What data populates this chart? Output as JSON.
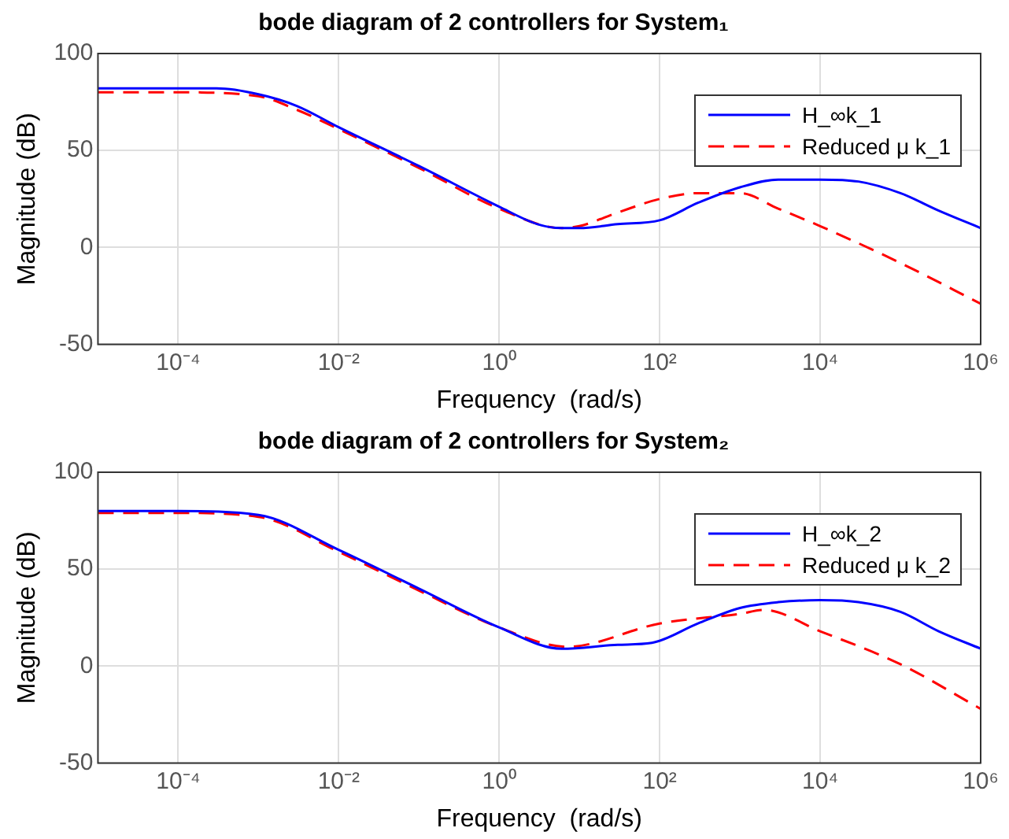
{
  "chart_data": [
    {
      "type": "line",
      "title": "bode diagram of 2 controllers for System₁",
      "xlabel": "Frequency  (rad/s)",
      "ylabel": "Magnitude (dB)",
      "log": "x",
      "grid": true,
      "legend": "top right",
      "marker": "none",
      "xlim": [
        1e-05,
        1000000
      ],
      "xticks": [
        {
          "value": 0.0001,
          "label": "10⁻⁴"
        },
        {
          "value": 0.01,
          "label": "10⁻²"
        },
        {
          "value": 1,
          "label": "10⁰"
        },
        {
          "value": 100,
          "label": "10²"
        },
        {
          "value": 10000,
          "label": "10⁴"
        },
        {
          "value": 1000000,
          "label": "10⁶"
        }
      ],
      "ylim": [
        -50,
        100
      ],
      "yticks": [
        -50,
        0,
        50,
        100
      ],
      "series": [
        {
          "name": "H_∞k_1",
          "color": "#0000ff",
          "line_style": "solid",
          "x": [
            1e-05,
            0.0001,
            0.0003,
            0.001,
            0.003,
            0.01,
            0.1,
            1,
            3,
            6,
            10,
            30,
            100,
            300,
            1000,
            3000,
            10000,
            30000,
            100000,
            300000,
            1000000
          ],
          "values": [
            82,
            82,
            82,
            79,
            73,
            62,
            42,
            21,
            12,
            10,
            10,
            12,
            14,
            23,
            31,
            35,
            35,
            34,
            28,
            19,
            10
          ]
        },
        {
          "name": "Reduced μ k_1",
          "color": "#ff0000",
          "line_style": "dashed",
          "x": [
            1e-05,
            0.0001,
            0.001,
            0.003,
            0.01,
            0.1,
            1,
            6,
            10,
            30,
            100,
            300,
            1000,
            3000,
            10000,
            100000,
            1000000
          ],
          "values": [
            80,
            80,
            78,
            71,
            61,
            41,
            20,
            10,
            11,
            18,
            25,
            28,
            28,
            20,
            11,
            -8,
            -29
          ]
        }
      ]
    },
    {
      "type": "line",
      "title": "bode diagram of 2 controllers for System₂",
      "xlabel": "Frequency  (rad/s)",
      "ylabel": "Magnitude (dB)",
      "log": "x",
      "grid": true,
      "legend": "top right",
      "marker": "none",
      "xlim": [
        1e-05,
        1000000
      ],
      "xticks": [
        {
          "value": 0.0001,
          "label": "10⁻⁴"
        },
        {
          "value": 0.01,
          "label": "10⁻²"
        },
        {
          "value": 1,
          "label": "10⁰"
        },
        {
          "value": 100,
          "label": "10²"
        },
        {
          "value": 10000,
          "label": "10⁴"
        },
        {
          "value": 1000000,
          "label": "10⁶"
        }
      ],
      "ylim": [
        -50,
        100
      ],
      "yticks": [
        -50,
        0,
        50,
        100
      ],
      "series": [
        {
          "name": "H_∞k_2",
          "color": "#0000ff",
          "line_style": "solid",
          "x": [
            1e-05,
            0.0001,
            0.001,
            0.01,
            0.1,
            1,
            6,
            30,
            80,
            300,
            1000,
            3000,
            10000,
            30000,
            100000,
            300000,
            1000000
          ],
          "values": [
            80,
            80,
            78,
            60,
            40,
            20,
            9,
            11,
            12,
            22,
            30,
            33,
            34,
            33,
            28,
            18,
            9
          ]
        },
        {
          "name": "Reduced μ k_2",
          "color": "#ff0000",
          "line_style": "dashed",
          "x": [
            1e-05,
            0.0001,
            0.001,
            0.01,
            0.1,
            1,
            7,
            100,
            1000,
            2000,
            10000,
            100000,
            1000000
          ],
          "values": [
            79,
            79,
            77,
            59,
            39,
            20,
            10,
            22,
            27,
            29,
            18,
            1,
            -22
          ]
        }
      ]
    }
  ]
}
